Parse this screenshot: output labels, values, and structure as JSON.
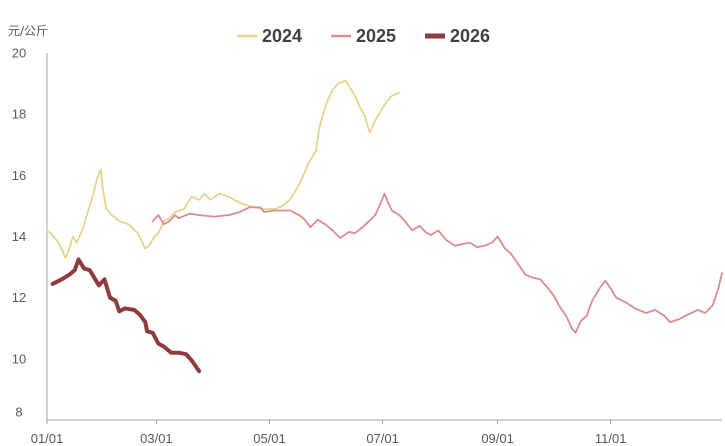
{
  "chart_data": {
    "type": "line",
    "ylabel": "元/公斤",
    "xlim": [
      "01/01",
      "12/31"
    ],
    "ylim": [
      8,
      20
    ],
    "x_ticks": [
      "01/01",
      "03/01",
      "05/01",
      "07/01",
      "09/01",
      "11/01"
    ],
    "y_ticks": [
      8,
      10,
      12,
      14,
      16,
      18,
      20
    ],
    "grid": false,
    "legend_position": "top",
    "series": [
      {
        "name": "2024",
        "color": "#E6D38C",
        "points": [
          [
            "01/01",
            14.2
          ],
          [
            "01/03",
            14.1
          ],
          [
            "01/06",
            13.9
          ],
          [
            "01/08",
            13.7
          ],
          [
            "01/11",
            13.3
          ],
          [
            "01/13",
            13.6
          ],
          [
            "01/15",
            14.0
          ],
          [
            "01/17",
            13.8
          ],
          [
            "01/20",
            14.2
          ],
          [
            "01/23",
            14.8
          ],
          [
            "01/26",
            15.4
          ],
          [
            "01/28",
            15.9
          ],
          [
            "01/30",
            16.2
          ],
          [
            "01/31",
            15.6
          ],
          [
            "02/02",
            14.9
          ],
          [
            "02/05",
            14.7
          ],
          [
            "02/09",
            14.5
          ],
          [
            "02/14",
            14.4
          ],
          [
            "02/19",
            14.1
          ],
          [
            "02/23",
            13.6
          ],
          [
            "02/25",
            13.7
          ],
          [
            "02/28",
            14.0
          ],
          [
            "03/02",
            14.1
          ],
          [
            "03/05",
            14.5
          ],
          [
            "03/08",
            14.6
          ],
          [
            "03/11",
            14.8
          ],
          [
            "03/16",
            14.9
          ],
          [
            "03/20",
            15.3
          ],
          [
            "03/24",
            15.2
          ],
          [
            "03/27",
            15.4
          ],
          [
            "03/30",
            15.2
          ],
          [
            "04/04",
            15.4
          ],
          [
            "04/09",
            15.3
          ],
          [
            "04/15",
            15.1
          ],
          [
            "04/20",
            15.0
          ],
          [
            "04/28",
            14.9
          ],
          [
            "05/04",
            14.9
          ],
          [
            "05/08",
            15.0
          ],
          [
            "05/12",
            15.2
          ],
          [
            "05/17",
            15.7
          ],
          [
            "05/20",
            16.1
          ],
          [
            "05/22",
            16.4
          ],
          [
            "05/26",
            16.8
          ],
          [
            "05/28",
            17.6
          ],
          [
            "06/01",
            18.4
          ],
          [
            "06/04",
            18.8
          ],
          [
            "06/07",
            19.0
          ],
          [
            "06/11",
            19.1
          ],
          [
            "06/14",
            18.8
          ],
          [
            "06/16",
            18.6
          ],
          [
            "06/19",
            18.2
          ],
          [
            "06/21",
            18.0
          ],
          [
            "06/24",
            17.4
          ],
          [
            "06/27",
            17.8
          ],
          [
            "06/30",
            18.1
          ],
          [
            "07/03",
            18.4
          ],
          [
            "07/06",
            18.6
          ],
          [
            "07/10",
            18.7
          ]
        ]
      },
      {
        "name": "2025",
        "color": "#DC8C8C",
        "points": [
          [
            "02/27",
            14.5
          ],
          [
            "03/02",
            14.7
          ],
          [
            "03/05",
            14.4
          ],
          [
            "03/08",
            14.5
          ],
          [
            "03/11",
            14.7
          ],
          [
            "03/13",
            14.6
          ],
          [
            "03/19",
            14.75
          ],
          [
            "03/24",
            14.7
          ],
          [
            "04/01",
            14.65
          ],
          [
            "04/09",
            14.7
          ],
          [
            "04/15",
            14.8
          ],
          [
            "04/20",
            14.95
          ],
          [
            "04/26",
            14.95
          ],
          [
            "04/28",
            14.8
          ],
          [
            "05/04",
            14.85
          ],
          [
            "05/12",
            14.85
          ],
          [
            "05/17",
            14.7
          ],
          [
            "05/20",
            14.55
          ],
          [
            "05/23",
            14.3
          ],
          [
            "05/27",
            14.55
          ],
          [
            "05/31",
            14.4
          ],
          [
            "06/04",
            14.2
          ],
          [
            "06/08",
            13.95
          ],
          [
            "06/13",
            14.15
          ],
          [
            "06/16",
            14.1
          ],
          [
            "06/21",
            14.35
          ],
          [
            "06/27",
            14.7
          ],
          [
            "06/30",
            15.1
          ],
          [
            "07/02",
            15.4
          ],
          [
            "07/04",
            15.1
          ],
          [
            "07/06",
            14.85
          ],
          [
            "07/10",
            14.7
          ],
          [
            "07/13",
            14.5
          ],
          [
            "07/17",
            14.2
          ],
          [
            "07/21",
            14.35
          ],
          [
            "07/24",
            14.15
          ],
          [
            "07/27",
            14.05
          ],
          [
            "07/31",
            14.2
          ],
          [
            "08/04",
            13.9
          ],
          [
            "08/09",
            13.7
          ],
          [
            "08/13",
            13.75
          ],
          [
            "08/17",
            13.8
          ],
          [
            "08/21",
            13.65
          ],
          [
            "08/25",
            13.7
          ],
          [
            "08/29",
            13.8
          ],
          [
            "09/01",
            14.0
          ],
          [
            "09/05",
            13.6
          ],
          [
            "09/08",
            13.45
          ],
          [
            "09/11",
            13.2
          ],
          [
            "09/16",
            12.75
          ],
          [
            "09/20",
            12.65
          ],
          [
            "09/24",
            12.6
          ],
          [
            "09/29",
            12.25
          ],
          [
            "10/02",
            12.0
          ],
          [
            "10/04",
            11.75
          ],
          [
            "10/08",
            11.4
          ],
          [
            "10/11",
            11.0
          ],
          [
            "10/13",
            10.85
          ],
          [
            "10/16",
            11.25
          ],
          [
            "10/19",
            11.4
          ],
          [
            "10/22",
            11.9
          ],
          [
            "10/26",
            12.3
          ],
          [
            "10/29",
            12.55
          ],
          [
            "11/01",
            12.3
          ],
          [
            "11/04",
            12.0
          ],
          [
            "11/09",
            11.85
          ],
          [
            "11/14",
            11.65
          ],
          [
            "11/20",
            11.5
          ],
          [
            "11/25",
            11.6
          ],
          [
            "11/30",
            11.4
          ],
          [
            "12/03",
            11.2
          ],
          [
            "12/08",
            11.3
          ],
          [
            "12/11",
            11.4
          ],
          [
            "12/18",
            11.6
          ],
          [
            "12/22",
            11.5
          ],
          [
            "12/26",
            11.75
          ],
          [
            "12/29",
            12.3
          ],
          [
            "12/31",
            12.8
          ]
        ]
      },
      {
        "name": "2026",
        "color": "#8E3B3B",
        "points": [
          [
            "01/04",
            12.45
          ],
          [
            "01/09",
            12.6
          ],
          [
            "01/13",
            12.75
          ],
          [
            "01/16",
            12.9
          ],
          [
            "01/18",
            13.25
          ],
          [
            "01/21",
            12.95
          ],
          [
            "01/24",
            12.9
          ],
          [
            "01/27",
            12.6
          ],
          [
            "01/29",
            12.4
          ],
          [
            "02/01",
            12.6
          ],
          [
            "02/04",
            12.0
          ],
          [
            "02/07",
            11.9
          ],
          [
            "02/09",
            11.55
          ],
          [
            "02/12",
            11.65
          ],
          [
            "02/17",
            11.6
          ],
          [
            "02/20",
            11.45
          ],
          [
            "02/23",
            11.2
          ],
          [
            "02/24",
            10.9
          ],
          [
            "02/27",
            10.85
          ],
          [
            "03/02",
            10.5
          ],
          [
            "03/05",
            10.4
          ],
          [
            "03/09",
            10.2
          ],
          [
            "03/13",
            10.2
          ],
          [
            "03/17",
            10.15
          ],
          [
            "03/20",
            9.95
          ],
          [
            "03/24",
            9.6
          ]
        ]
      }
    ]
  }
}
